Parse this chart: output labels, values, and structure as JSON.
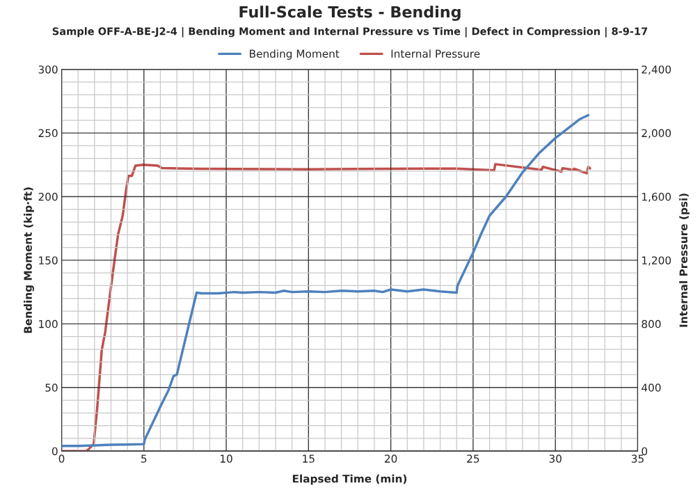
{
  "chart_data": {
    "type": "line",
    "title": "Full-Scale Tests - Bending",
    "subtitle": "Sample OFF-A-BE-J2-4 | Bending Moment and Internal Pressure vs Time | Defect in Compression | 8-9-17",
    "xlabel": "Elapsed Time (min)",
    "ylabel": "Bending Moment (kip·ft)",
    "y2label": "Internal Pressure (psi)",
    "xlim": [
      0,
      35
    ],
    "ylim": [
      0,
      300
    ],
    "y2lim": [
      0,
      2400
    ],
    "xticks": [
      0,
      {
        "value": 1,
        "label": null
      },
      {
        "value": 2,
        "label": null
      },
      {
        "value": 3,
        "label": null
      },
      {
        "value": 4,
        "label": null
      },
      5,
      {
        "value": 6,
        "label": null
      },
      {
        "value": 7,
        "label": null
      },
      {
        "value": 8,
        "label": null
      },
      {
        "value": 9,
        "label": null
      },
      10,
      {
        "value": 11,
        "label": null
      },
      {
        "value": 12,
        "label": null
      },
      {
        "value": 13,
        "label": null
      },
      {
        "value": 14,
        "label": null
      },
      15,
      {
        "value": 16,
        "label": null
      },
      {
        "value": 17,
        "label": null
      },
      {
        "value": 18,
        "label": null
      },
      {
        "value": 19,
        "label": null
      },
      20,
      {
        "value": 21,
        "label": null
      },
      {
        "value": 22,
        "label": null
      },
      {
        "value": 23,
        "label": null
      },
      {
        "value": 24,
        "label": null
      },
      25,
      {
        "value": 26,
        "label": null
      },
      {
        "value": 27,
        "label": null
      },
      {
        "value": 28,
        "label": null
      },
      {
        "value": 29,
        "label": null
      },
      30,
      {
        "value": 31,
        "label": null
      },
      {
        "value": 32,
        "label": null
      },
      {
        "value": 33,
        "label": null
      },
      {
        "value": 34,
        "label": null
      },
      35
    ],
    "yticks": [
      0,
      {
        "value": 10,
        "label": null
      },
      {
        "value": 20,
        "label": null
      },
      {
        "value": 30,
        "label": null
      },
      {
        "value": 40,
        "label": null
      },
      50,
      {
        "value": 60,
        "label": null
      },
      {
        "value": 70,
        "label": null
      },
      {
        "value": 80,
        "label": null
      },
      {
        "value": 90,
        "label": null
      },
      100,
      {
        "value": 110,
        "label": null
      },
      {
        "value": 120,
        "label": null
      },
      {
        "value": 130,
        "label": null
      },
      {
        "value": 140,
        "label": null
      },
      150,
      {
        "value": 160,
        "label": null
      },
      {
        "value": 170,
        "label": null
      },
      {
        "value": 180,
        "label": null
      },
      {
        "value": 190,
        "label": null
      },
      200,
      {
        "value": 210,
        "label": null
      },
      {
        "value": 220,
        "label": null
      },
      {
        "value": 230,
        "label": null
      },
      {
        "value": 240,
        "label": null
      },
      250,
      {
        "value": 260,
        "label": null
      },
      {
        "value": 270,
        "label": null
      },
      {
        "value": 280,
        "label": null
      },
      {
        "value": 290,
        "label": null
      },
      300
    ],
    "y2ticks": [
      0,
      400,
      800,
      {
        "value": 1200,
        "label": "1,200"
      },
      {
        "value": 1600,
        "label": "1,600"
      },
      {
        "value": 2000,
        "label": "2,000"
      },
      {
        "value": 2400,
        "label": "2,400"
      }
    ],
    "grid": true,
    "legend": "top",
    "line_style": "solid",
    "marker": "none",
    "series": [
      {
        "name": "Bending Moment",
        "color": "#4f81bd",
        "x": [
          0,
          1,
          2,
          3,
          4,
          5,
          5.05,
          6,
          6.5,
          6.8,
          7,
          8.2,
          8.5,
          9.5,
          10.5,
          11,
          12,
          13,
          13.5,
          14,
          15,
          16,
          17,
          18,
          19,
          19.5,
          20,
          21,
          22,
          23,
          24,
          24.05,
          25,
          25.5,
          26,
          27,
          28,
          29,
          30,
          31,
          31.5,
          32
        ],
        "values": [
          4,
          4,
          4.5,
          5,
          5.2,
          5.5,
          9,
          35,
          48,
          59,
          60,
          124.5,
          124,
          124,
          125,
          124.5,
          125,
          124.5,
          126,
          125,
          125.5,
          125,
          126,
          125.5,
          126,
          125,
          127,
          125.5,
          127,
          125.5,
          124.5,
          130,
          156,
          171,
          185,
          200,
          219,
          234,
          246,
          256,
          261,
          264
        ]
      },
      {
        "name": "Internal Pressure",
        "color": "#c0504d",
        "axis": "y2",
        "x": [
          0,
          1.52,
          1.95,
          2.16,
          2.44,
          2.65,
          2.92,
          3.22,
          3.43,
          3.71,
          3.92,
          4.06,
          4.27,
          4.49,
          4.98,
          5.83,
          6.1,
          8.37,
          15,
          22,
          24,
          26.28,
          26.35,
          29.16,
          29.24,
          30.37,
          30.43,
          31.06,
          31.13,
          31.9,
          32.0,
          32.1
        ],
        "values": [
          0,
          0,
          44,
          267,
          635,
          749,
          968,
          1204,
          1362,
          1480,
          1642,
          1730,
          1730,
          1795,
          1800,
          1795,
          1779,
          1775,
          1772,
          1776,
          1776,
          1765,
          1804,
          1769,
          1787,
          1757,
          1778,
          1769,
          1775,
          1747,
          1787,
          1778
        ]
      }
    ]
  }
}
